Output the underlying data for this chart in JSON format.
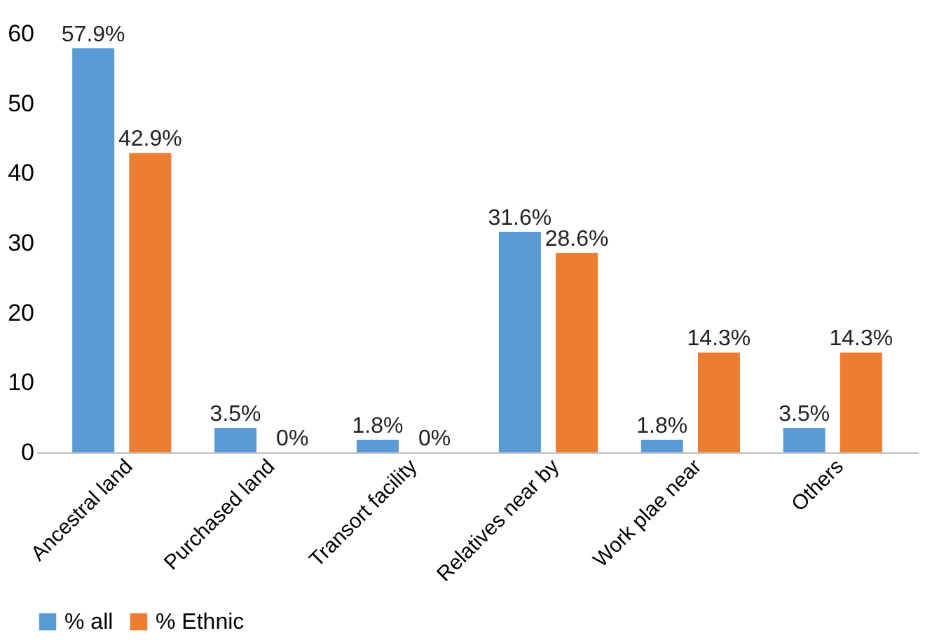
{
  "chart_data": {
    "type": "bar",
    "categories": [
      "Ancestral land",
      "Purchased land",
      "Transort facility",
      "Relatives near by",
      "Work plae near",
      "Others"
    ],
    "series": [
      {
        "name": "% all",
        "color": "#5b9bd5",
        "values": [
          57.9,
          3.5,
          1.8,
          31.6,
          1.8,
          3.5
        ],
        "value_labels": [
          "57.9%",
          "3.5%",
          "1.8%",
          "31.6%",
          "1.8%",
          "3.5%"
        ]
      },
      {
        "name": "% Ethnic",
        "color": "#ed7d31",
        "values": [
          42.9,
          0,
          0,
          28.6,
          14.3,
          14.3
        ],
        "value_labels": [
          "42.9%",
          "0%",
          "0%",
          "28.6%",
          "14.3%",
          "14.3%"
        ]
      }
    ],
    "ylim": [
      0,
      60
    ],
    "yticks": [
      0,
      10,
      20,
      30,
      40,
      50,
      60
    ],
    "grid": false,
    "legend": "bottom"
  }
}
